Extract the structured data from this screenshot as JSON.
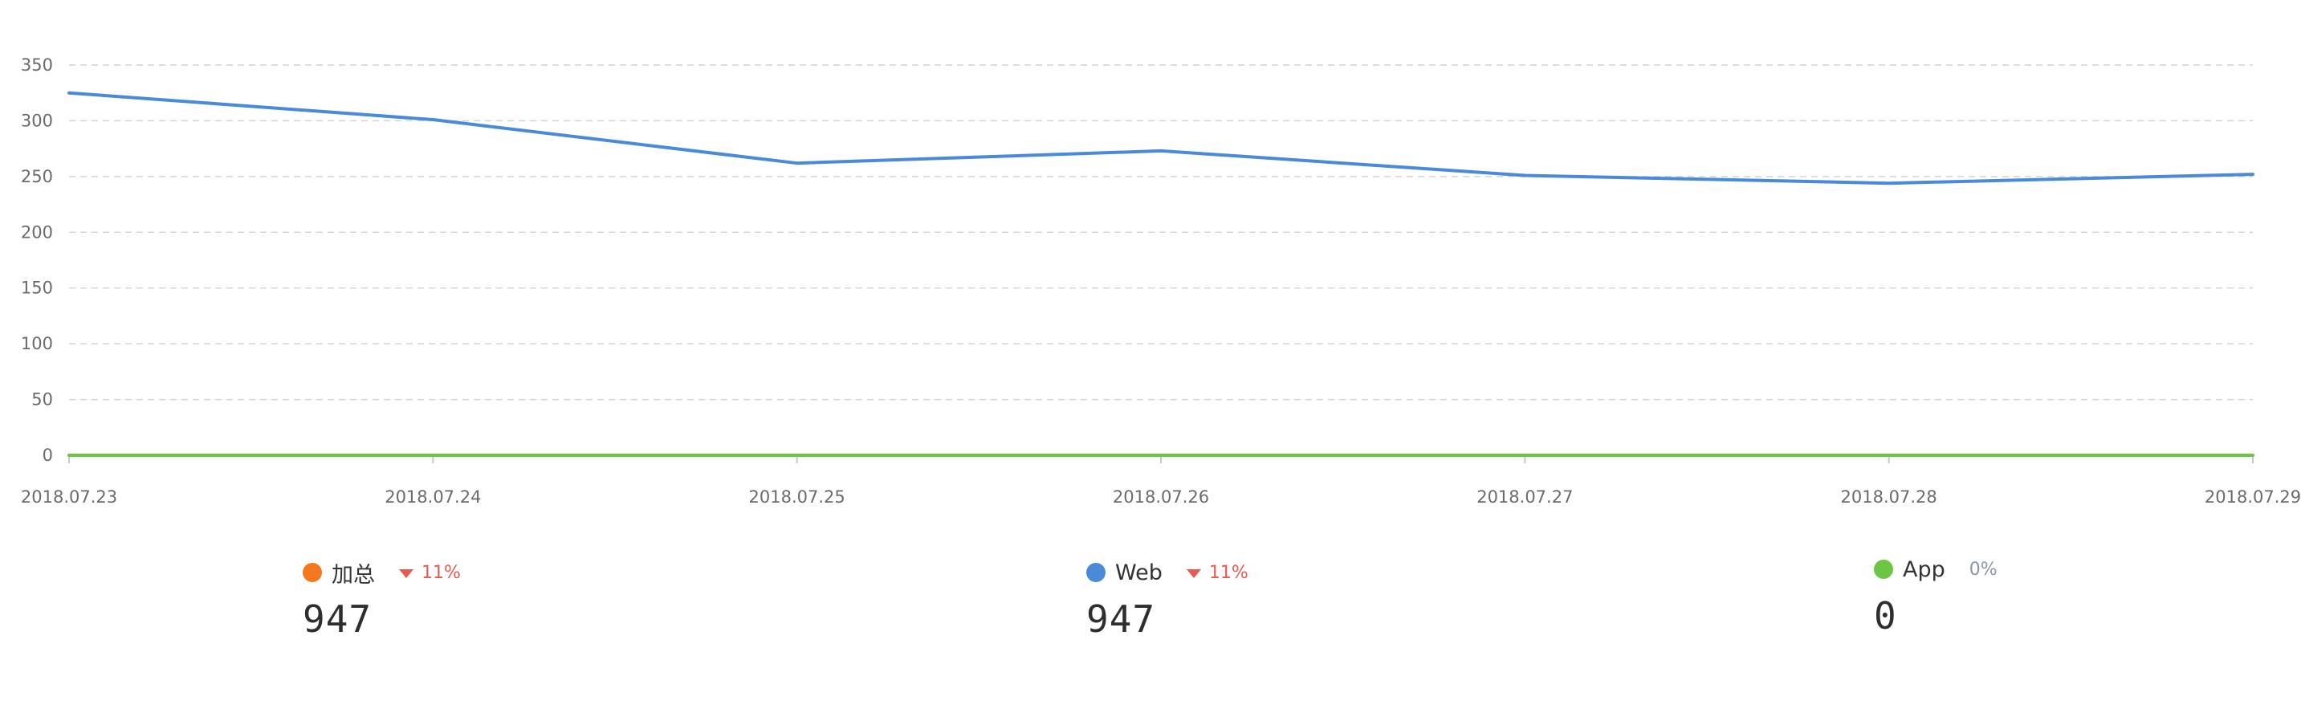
{
  "chart_data": {
    "type": "line",
    "x": [
      "2018.07.23",
      "2018.07.24",
      "2018.07.25",
      "2018.07.26",
      "2018.07.27",
      "2018.07.28",
      "2018.07.29"
    ],
    "yticks": [
      0,
      50,
      100,
      150,
      200,
      250,
      300,
      350
    ],
    "ylim": [
      0,
      350
    ],
    "grid": true,
    "series": [
      {
        "name": "Web",
        "color": "#4a8ad8",
        "values": [
          325,
          301,
          262,
          273,
          251,
          244,
          252
        ]
      },
      {
        "name": "App",
        "color": "#6cc644",
        "values": [
          0,
          0,
          0,
          0,
          0,
          0,
          0
        ]
      }
    ],
    "legend": [
      {
        "key": "total",
        "name": "加总",
        "color": "#f5781e",
        "change": "11%",
        "trend": "down",
        "value": "947"
      },
      {
        "key": "web",
        "name": "Web",
        "color": "#4a8ad8",
        "change": "11%",
        "trend": "down",
        "value": "947"
      },
      {
        "key": "app",
        "name": "App",
        "color": "#6cc644",
        "change": "0%",
        "trend": "flat",
        "value": "0"
      }
    ]
  }
}
